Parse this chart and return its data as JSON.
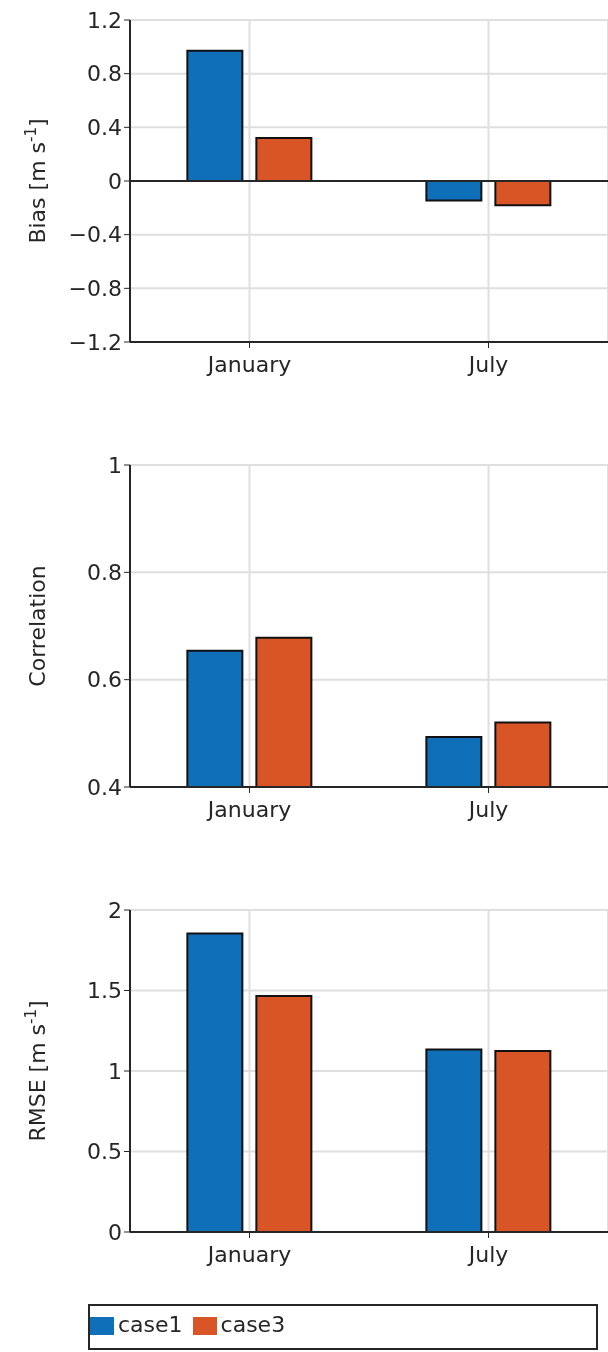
{
  "chart_data": [
    {
      "type": "bar",
      "ylabel": "Bias [m s$^{-1}$]",
      "categories": [
        "January",
        "July"
      ],
      "series": [
        {
          "color": "#0f6fb8",
          "values": [
            0.97,
            -0.145
          ]
        },
        {
          "color": "#d95525",
          "values": [
            0.32,
            -0.18
          ]
        }
      ],
      "ylim": [
        -1.2,
        1.2
      ],
      "yticks": [
        {
          "value": -1.2,
          "label": "−1.2"
        },
        {
          "value": -0.8,
          "label": "−0.8"
        },
        {
          "value": -0.4,
          "label": "−0.4"
        },
        0,
        0.4,
        0.8,
        1.2
      ],
      "ref_lines": [
        {
          "axis": "y",
          "value": 0,
          "color": "#262626"
        }
      ],
      "grid": true,
      "legend": false
    },
    {
      "type": "bar",
      "ylabel": "Correlation",
      "categories": [
        "January",
        "July"
      ],
      "series": [
        {
          "color": "#0f6fb8",
          "values": [
            0.654,
            0.493
          ]
        },
        {
          "color": "#d95525",
          "values": [
            0.678,
            0.52
          ]
        }
      ],
      "ylim": [
        0.4,
        1
      ],
      "yticks": [
        0.4,
        0.6,
        0.8,
        1
      ],
      "grid": true,
      "legend": false
    },
    {
      "type": "bar",
      "ylabel": "RMSE [m s$^{-1}$]",
      "categories": [
        "January",
        "July"
      ],
      "series": [
        {
          "name": "case1",
          "color": "#0f6fb8",
          "values": [
            1.854,
            1.133
          ]
        },
        {
          "name": "case3",
          "color": "#d95525",
          "values": [
            1.466,
            1.124
          ]
        }
      ],
      "ylim": [
        0,
        2
      ],
      "yticks": [
        0,
        0.5,
        1,
        1.5,
        2
      ],
      "grid": true,
      "legend": "bottom"
    }
  ]
}
